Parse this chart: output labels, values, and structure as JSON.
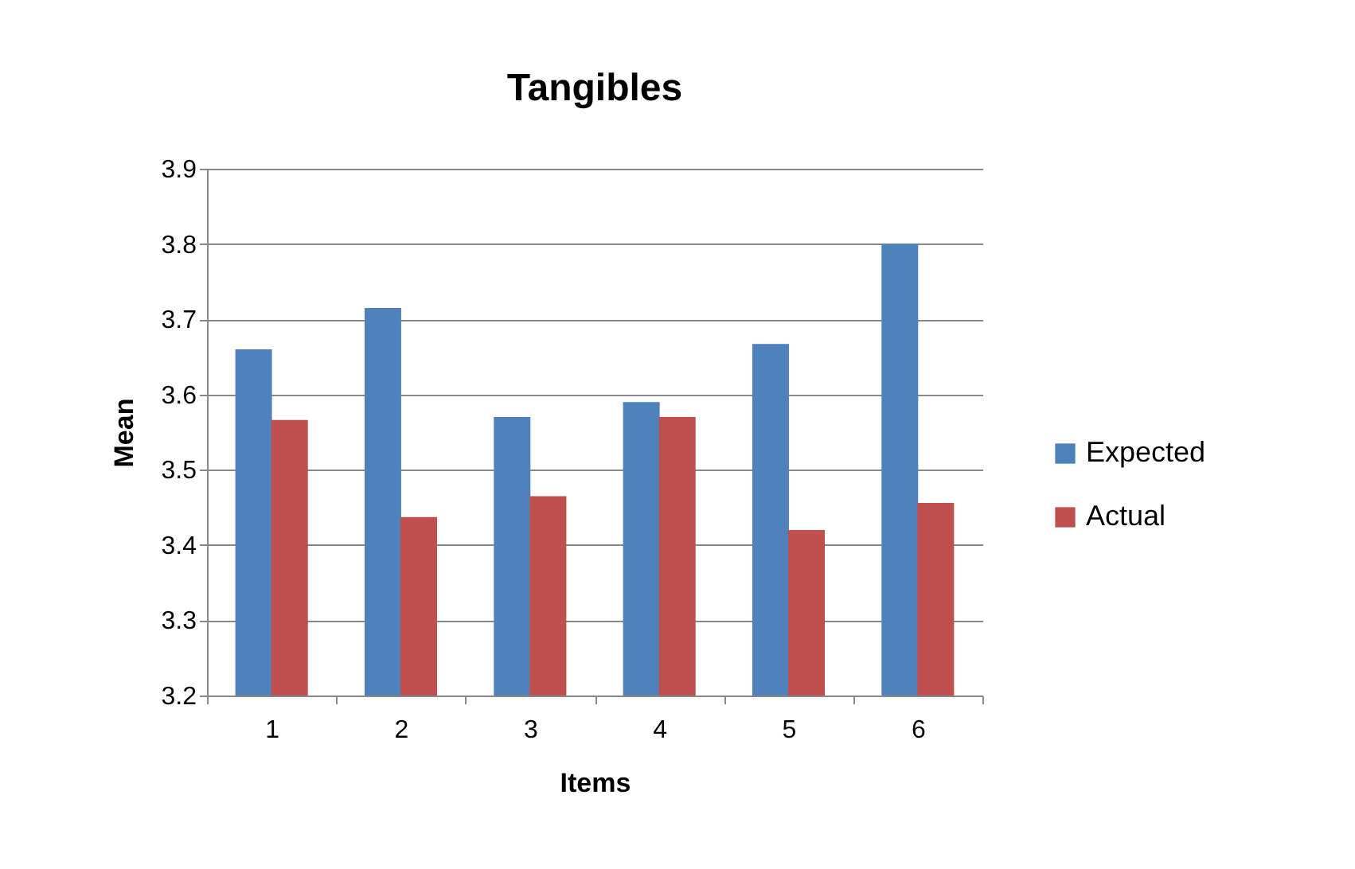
{
  "chart_data": {
    "type": "bar",
    "title": "Tangibles",
    "xlabel": "Items",
    "ylabel": "Mean",
    "categories": [
      "1",
      "2",
      "3",
      "4",
      "5",
      "6"
    ],
    "series": [
      {
        "name": "Expected",
        "color": "#4f81bd",
        "values": [
          3.66,
          3.715,
          3.57,
          3.59,
          3.667,
          3.8
        ]
      },
      {
        "name": "Actual",
        "color": "#c0504d",
        "values": [
          3.566,
          3.437,
          3.465,
          3.57,
          3.42,
          3.456
        ]
      }
    ],
    "ylim": [
      3.2,
      3.9
    ],
    "yticks": [
      3.2,
      3.3,
      3.4,
      3.5,
      3.6,
      3.7,
      3.8,
      3.9
    ],
    "grid": "y",
    "legend": "right"
  }
}
